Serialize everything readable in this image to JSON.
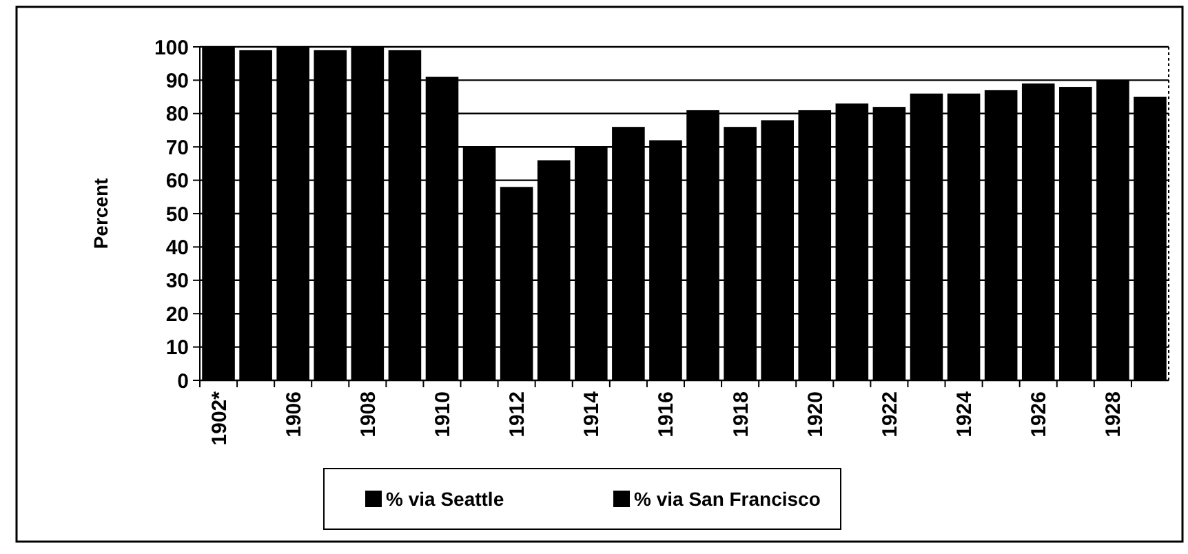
{
  "chart_data": {
    "type": "bar",
    "ylabel": "Percent",
    "categories": [
      "1902*",
      null,
      "1906",
      null,
      "1908",
      null,
      "1910",
      null,
      "1912",
      null,
      "1914",
      null,
      "1916",
      null,
      "1918",
      null,
      "1920",
      null,
      "1922",
      null,
      "1924",
      null,
      "1926",
      null,
      "1928",
      null
    ],
    "series": [
      {
        "name": "% via Seattle",
        "color": "#000000",
        "values": [
          100,
          99,
          100,
          99,
          100,
          99,
          91,
          70,
          58,
          66,
          70,
          76,
          72,
          81,
          76,
          78,
          81,
          83,
          82,
          86,
          86,
          87,
          89,
          88,
          90,
          85
        ]
      },
      {
        "name": "% via San Francisco",
        "color": "#000000",
        "values": [
          null,
          null,
          null,
          null,
          null,
          null,
          null,
          null,
          null,
          null,
          null,
          null,
          null,
          null,
          null,
          null,
          null,
          null,
          null,
          null,
          null,
          null,
          null,
          null,
          null,
          null
        ]
      }
    ],
    "ylim": [
      0,
      100
    ],
    "yticks": [
      0,
      10,
      20,
      30,
      40,
      50,
      60,
      70,
      80,
      90,
      100
    ],
    "grid": "y",
    "legend": "bottom"
  }
}
